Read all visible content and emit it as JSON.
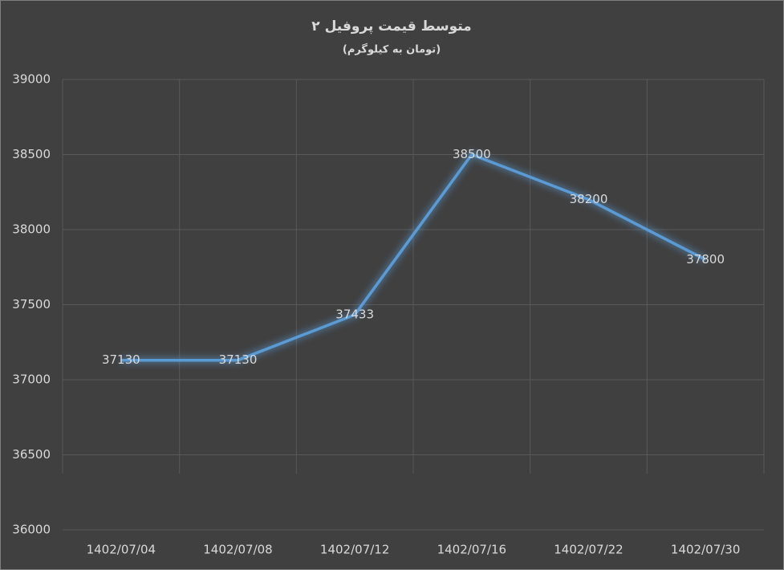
{
  "chart_data": {
    "type": "line",
    "title": "متوسط قیمت پروفیل ۲",
    "subtitle": "(تومان به کیلوگرم)",
    "categories": [
      "1402/07/04",
      "1402/07/08",
      "1402/07/12",
      "1402/07/16",
      "1402/07/22",
      "1402/07/30"
    ],
    "values": [
      37130,
      37130,
      37433,
      38500,
      38200,
      37800
    ],
    "color": "#5b9bd5",
    "ylim": [
      36000,
      39000
    ],
    "yticks": [
      36000,
      36500,
      37000,
      37500,
      38000,
      38500,
      39000
    ],
    "grid": true
  }
}
